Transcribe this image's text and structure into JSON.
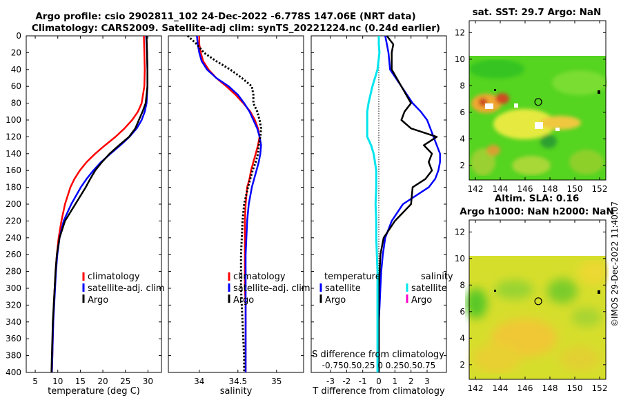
{
  "title": {
    "line1": "Argo profile: csio 2902811_102 24-Dec-2022 -6.778S 147.06E (NRT data)",
    "line2": "Climatology: CARS2009. Satellite-adj clim: synTS_20221224.nc (0.24d earlier)"
  },
  "copyright": "©IMOS 29-Dec-2022 11:40:07",
  "colors": {
    "climatology": "#ff0000",
    "satellite": "#0000ff",
    "argo": "#000000",
    "satellite_s": "#00e5ee",
    "argo_s": "#ff00cc"
  },
  "depth_axis": {
    "ylim": [
      0,
      400
    ],
    "ticks": [
      "0",
      "20",
      "40",
      "60",
      "80",
      "100",
      "120",
      "140",
      "160",
      "180",
      "200",
      "220",
      "240",
      "260",
      "280",
      "300",
      "320",
      "340",
      "360",
      "380",
      "400"
    ]
  },
  "chart_data": [
    {
      "type": "line",
      "name": "temperature",
      "xlabel": "temperature (deg C)",
      "xlim": [
        3,
        33
      ],
      "xticks": [
        5,
        10,
        15,
        20,
        25,
        30
      ],
      "xtick_labels": [
        "5",
        "10",
        "15",
        "20",
        "25",
        "30"
      ],
      "depths": [
        0,
        20,
        40,
        60,
        80,
        90,
        100,
        110,
        120,
        130,
        140,
        150,
        160,
        170,
        180,
        200,
        220,
        240,
        260,
        280,
        300,
        320,
        340,
        360,
        380,
        400
      ],
      "series": [
        {
          "name": "climatology",
          "values": [
            29.1,
            29.2,
            29.3,
            29.2,
            28.6,
            27.8,
            26.5,
            24.8,
            22.8,
            20.5,
            18.3,
            16.4,
            14.9,
            13.7,
            12.8,
            11.6,
            10.8,
            10.2,
            9.8,
            9.5,
            9.3,
            9.1,
            9.0,
            8.9,
            8.8,
            8.7
          ]
        },
        {
          "name": "satellite-adj. clim",
          "values": [
            29.6,
            29.8,
            29.9,
            29.9,
            29.7,
            29.3,
            28.6,
            27.5,
            25.9,
            23.9,
            21.7,
            19.6,
            17.9,
            16.4,
            15.1,
            13.0,
            11.3,
            10.4,
            9.9,
            9.6,
            9.4,
            9.2,
            9.0,
            8.9,
            8.8,
            8.7
          ]
        },
        {
          "name": "Argo",
          "values": [
            29.7,
            29.8,
            29.9,
            29.9,
            29.5,
            28.8,
            28.0,
            27.2,
            25.8,
            23.6,
            21.5,
            19.8,
            18.3,
            17.2,
            16.2,
            13.9,
            11.6,
            10.4,
            9.8,
            9.5,
            9.3,
            9.1,
            8.9,
            8.8,
            8.7,
            8.6
          ]
        }
      ],
      "legend": [
        "climatology",
        "satellite-adj. clim",
        "Argo"
      ]
    },
    {
      "type": "line",
      "name": "salinity",
      "xlabel": "salinity",
      "xlim": [
        33.6,
        35.35
      ],
      "xticks": [
        34,
        34.5,
        35
      ],
      "xtick_labels": [
        "34",
        "34.5",
        "35"
      ],
      "depths": [
        0,
        10,
        20,
        30,
        40,
        50,
        60,
        70,
        80,
        90,
        100,
        110,
        120,
        130,
        140,
        150,
        160,
        170,
        180,
        200,
        220,
        240,
        260,
        280,
        300,
        320,
        340,
        360,
        380,
        400
      ],
      "series": [
        {
          "name": "climatology",
          "values": [
            34.0,
            34.0,
            34.02,
            34.05,
            34.12,
            34.22,
            34.35,
            34.47,
            34.57,
            34.66,
            34.72,
            34.76,
            34.78,
            34.76,
            34.73,
            34.7,
            34.67,
            34.65,
            34.62,
            34.6,
            34.59,
            34.59,
            34.59,
            34.59,
            34.59,
            34.6,
            34.6,
            34.6,
            34.6,
            34.6
          ]
        },
        {
          "name": "satellite-adj. clim",
          "values": [
            33.97,
            33.98,
            34.0,
            34.03,
            34.1,
            34.22,
            34.38,
            34.5,
            34.58,
            34.65,
            34.7,
            34.75,
            34.78,
            34.8,
            34.79,
            34.77,
            34.74,
            34.71,
            34.68,
            34.64,
            34.62,
            34.61,
            34.6,
            34.6,
            34.6,
            34.6,
            34.6,
            34.6,
            34.6,
            34.6
          ]
        },
        {
          "name": "Argo",
          "values": [
            33.85,
            33.97,
            34.06,
            34.22,
            34.4,
            34.55,
            34.68,
            34.7,
            34.7,
            34.75,
            34.78,
            34.8,
            34.79,
            34.77,
            34.76,
            34.73,
            34.69,
            34.66,
            34.63,
            34.58,
            34.56,
            34.55,
            34.54,
            34.54,
            34.54,
            34.55,
            34.56,
            34.57,
            34.58,
            34.58
          ]
        }
      ],
      "legend": [
        "climatology",
        "satellite-adj. clim",
        "Argo"
      ]
    },
    {
      "type": "line",
      "name": "differences",
      "xlabel": "T difference from climatology",
      "xlim": [
        -4.2,
        4.2
      ],
      "xticks": [
        -3,
        -2,
        -1,
        0,
        1,
        2,
        3
      ],
      "xtick_labels": [
        "-3",
        "-2",
        "-1",
        "0",
        "1",
        "2",
        "3"
      ],
      "s_axis_label": "S difference from climatology",
      "s_axis_ticks": "-0.750.50.25 0 0.250.50.75",
      "depths": [
        0,
        10,
        20,
        40,
        60,
        80,
        90,
        100,
        110,
        120,
        130,
        140,
        150,
        160,
        170,
        180,
        200,
        220,
        240,
        260,
        280,
        300,
        320,
        340,
        360,
        380,
        400
      ],
      "series": [
        {
          "name": "T satellite",
          "values": [
            0.4,
            0.5,
            0.6,
            0.7,
            1.4,
            2.1,
            2.6,
            3.0,
            3.2,
            3.4,
            3.6,
            3.8,
            3.8,
            3.7,
            3.5,
            3.1,
            1.5,
            0.8,
            0.4,
            0.25,
            0.15,
            0.1,
            0.05,
            0.0,
            0.0,
            0.0,
            0.0
          ]
        },
        {
          "name": "T Argo",
          "values": [
            0.5,
            0.9,
            0.8,
            0.8,
            1.4,
            2.0,
            1.6,
            1.4,
            2.0,
            3.6,
            2.8,
            3.3,
            3.1,
            3.3,
            2.9,
            2.1,
            2.0,
            1.0,
            0.3,
            0.1,
            0.05,
            0.0,
            0.0,
            0.0,
            0.0,
            0.0,
            0.0
          ]
        },
        {
          "name": "S satellite",
          "values": [
            0.0,
            0.0,
            0.01,
            -0.02,
            -0.1,
            -0.16,
            -0.18,
            -0.18,
            -0.18,
            -0.18,
            -0.12,
            -0.08,
            -0.06,
            -0.04,
            -0.04,
            -0.04,
            -0.05,
            -0.04,
            -0.04,
            -0.03,
            -0.02,
            -0.02,
            -0.02,
            -0.02,
            -0.02,
            -0.02,
            -0.02
          ]
        }
      ],
      "legend": {
        "temperature_header": "temperature",
        "salinity_header": "salinity",
        "t_items": [
          "satellite",
          "Argo"
        ],
        "s_items": [
          "satellite",
          "Argo"
        ]
      }
    }
  ],
  "maps": [
    {
      "name": "sst",
      "title": "sat. SST: 29.7 Argo: NaN",
      "xticks": [
        "142",
        "144",
        "146",
        "148",
        "150",
        "152"
      ],
      "yticks": [
        "2",
        "4",
        "6",
        "8",
        "10",
        "12"
      ],
      "xlim": [
        141.5,
        152.5
      ],
      "ylim": [
        0.9,
        12.9
      ],
      "data_top_lat": 10,
      "marker": {
        "lon": 147.06,
        "lat": 6.78
      }
    },
    {
      "name": "sla",
      "title1": "Altim. SLA: 0.16",
      "title2": "Argo h1000: NaN h2000: NaN",
      "xticks": [
        "142",
        "144",
        "146",
        "148",
        "150",
        "152"
      ],
      "yticks": [
        "2",
        "4",
        "6",
        "8",
        "10",
        "12"
      ],
      "xlim": [
        141.5,
        152.5
      ],
      "ylim": [
        0.9,
        12.9
      ],
      "data_top_lat": 10,
      "marker": {
        "lon": 147.06,
        "lat": 6.78
      }
    }
  ]
}
